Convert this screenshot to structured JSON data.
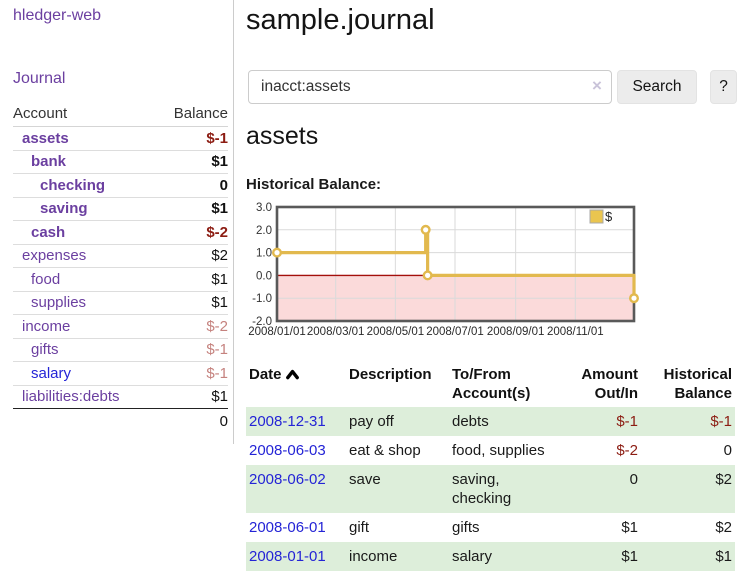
{
  "app": {
    "title": "hledger-web"
  },
  "nav": {
    "journal": "Journal"
  },
  "sidebar": {
    "columns": {
      "account": "Account",
      "balance": "Balance"
    },
    "accounts": [
      {
        "name": "assets",
        "indent": 1,
        "bold": true,
        "balance": "$-1",
        "balance_style": "neg",
        "link_style": "purple"
      },
      {
        "name": "bank",
        "indent": 2,
        "bold": true,
        "balance": "$1",
        "balance_style": "pos",
        "link_style": "purple"
      },
      {
        "name": "checking",
        "indent": 3,
        "bold": true,
        "balance": "0",
        "balance_style": "pos",
        "link_style": "purple"
      },
      {
        "name": "saving",
        "indent": 3,
        "bold": true,
        "balance": "$1",
        "balance_style": "pos",
        "link_style": "purple"
      },
      {
        "name": "cash",
        "indent": 2,
        "bold": true,
        "balance": "$-2",
        "balance_style": "neg",
        "link_style": "purple"
      },
      {
        "name": "expenses",
        "indent": 1,
        "bold": false,
        "balance": "$2",
        "balance_style": "pos",
        "link_style": "purple"
      },
      {
        "name": "food",
        "indent": 2,
        "bold": false,
        "balance": "$1",
        "balance_style": "pos",
        "link_style": "purple"
      },
      {
        "name": "supplies",
        "indent": 2,
        "bold": false,
        "balance": "$1",
        "balance_style": "pos",
        "link_style": "purple"
      },
      {
        "name": "income",
        "indent": 1,
        "bold": false,
        "balance": "$-2",
        "balance_style": "negsoft",
        "link_style": "purple"
      },
      {
        "name": "gifts",
        "indent": 2,
        "bold": false,
        "balance": "$-1",
        "balance_style": "negsoft",
        "link_style": "purple"
      },
      {
        "name": "salary",
        "indent": 2,
        "bold": false,
        "balance": "$-1",
        "balance_style": "negsoft",
        "link_style": "blue"
      },
      {
        "name": "liabilities:debts",
        "indent": 1,
        "bold": false,
        "balance": "$1",
        "balance_style": "pos",
        "link_style": "purple"
      }
    ],
    "total": "0"
  },
  "main": {
    "title": "sample.journal",
    "account_heading": "assets",
    "chart_heading": "Historical Balance:"
  },
  "search": {
    "value": "inacct:assets",
    "clear_glyph": "×",
    "button_label": "Search",
    "help_label": "?"
  },
  "chart_data": {
    "type": "line",
    "step": true,
    "title": "Historical Balance:",
    "x_range": [
      "2008-01-01",
      "2008-12-31"
    ],
    "ylim": [
      -2.0,
      3.0
    ],
    "yticks": [
      3.0,
      2.0,
      1.0,
      0.0,
      -1.0,
      -2.0
    ],
    "xticks": [
      "2008/01/01",
      "2008/03/01",
      "2008/05/01",
      "2008/07/01",
      "2008/09/01",
      "2008/11/01"
    ],
    "grid": true,
    "legend": {
      "label": "$",
      "position": "top-right"
    },
    "series": [
      {
        "name": "$",
        "points": [
          {
            "x": "2008-01-01",
            "y": 1.0
          },
          {
            "x": "2008-06-01",
            "y": 2.0
          },
          {
            "x": "2008-06-03",
            "y": 0.0
          },
          {
            "x": "2008-12-31",
            "y": -1.0
          }
        ]
      }
    ]
  },
  "register": {
    "columns": [
      {
        "label": "Date",
        "align": "left",
        "sorted": "ascending"
      },
      {
        "label": "Description",
        "align": "left"
      },
      {
        "label": "To/From Account(s)",
        "align": "left"
      },
      {
        "label": "Amount Out/In",
        "align": "right"
      },
      {
        "label": "Historical Balance",
        "align": "right"
      }
    ],
    "rows": [
      {
        "date": "2008-12-31",
        "description": "pay off",
        "accounts": "debts",
        "amount": {
          "text": "$-1",
          "negative": true
        },
        "balance": {
          "text": "$-1",
          "negative": true
        },
        "highlight": true
      },
      {
        "date": "2008-06-03",
        "description": "eat & shop",
        "accounts": "food, supplies",
        "amount": {
          "text": "$-2",
          "negative": true
        },
        "balance": {
          "text": "0",
          "negative": false
        },
        "highlight": false
      },
      {
        "date": "2008-06-02",
        "description": "save",
        "accounts": "saving, checking",
        "amount": {
          "text": "0",
          "negative": false
        },
        "balance": {
          "text": "$2",
          "negative": false
        },
        "highlight": true
      },
      {
        "date": "2008-06-01",
        "description": "gift",
        "accounts": "gifts",
        "amount": {
          "text": "$1",
          "negative": false
        },
        "balance": {
          "text": "$2",
          "negative": false
        },
        "highlight": false
      },
      {
        "date": "2008-01-01",
        "description": "income",
        "accounts": "salary",
        "amount": {
          "text": "$1",
          "negative": false
        },
        "balance": {
          "text": "$1",
          "negative": false
        },
        "highlight": true
      }
    ]
  },
  "colors": {
    "purple_link": "#6b3fa0",
    "blue_link": "#2424d6",
    "negative": "#8c1c12",
    "negative_soft": "#c5827e",
    "row_highlight": "#ddeeda",
    "chart_line": "#e2b94e",
    "chart_negative_bg": "#fbdada",
    "chart_zero_line": "#a40f0b",
    "chart_border": "#595959",
    "chart_grid": "#dadada",
    "legend_fill": "#eac54f"
  }
}
